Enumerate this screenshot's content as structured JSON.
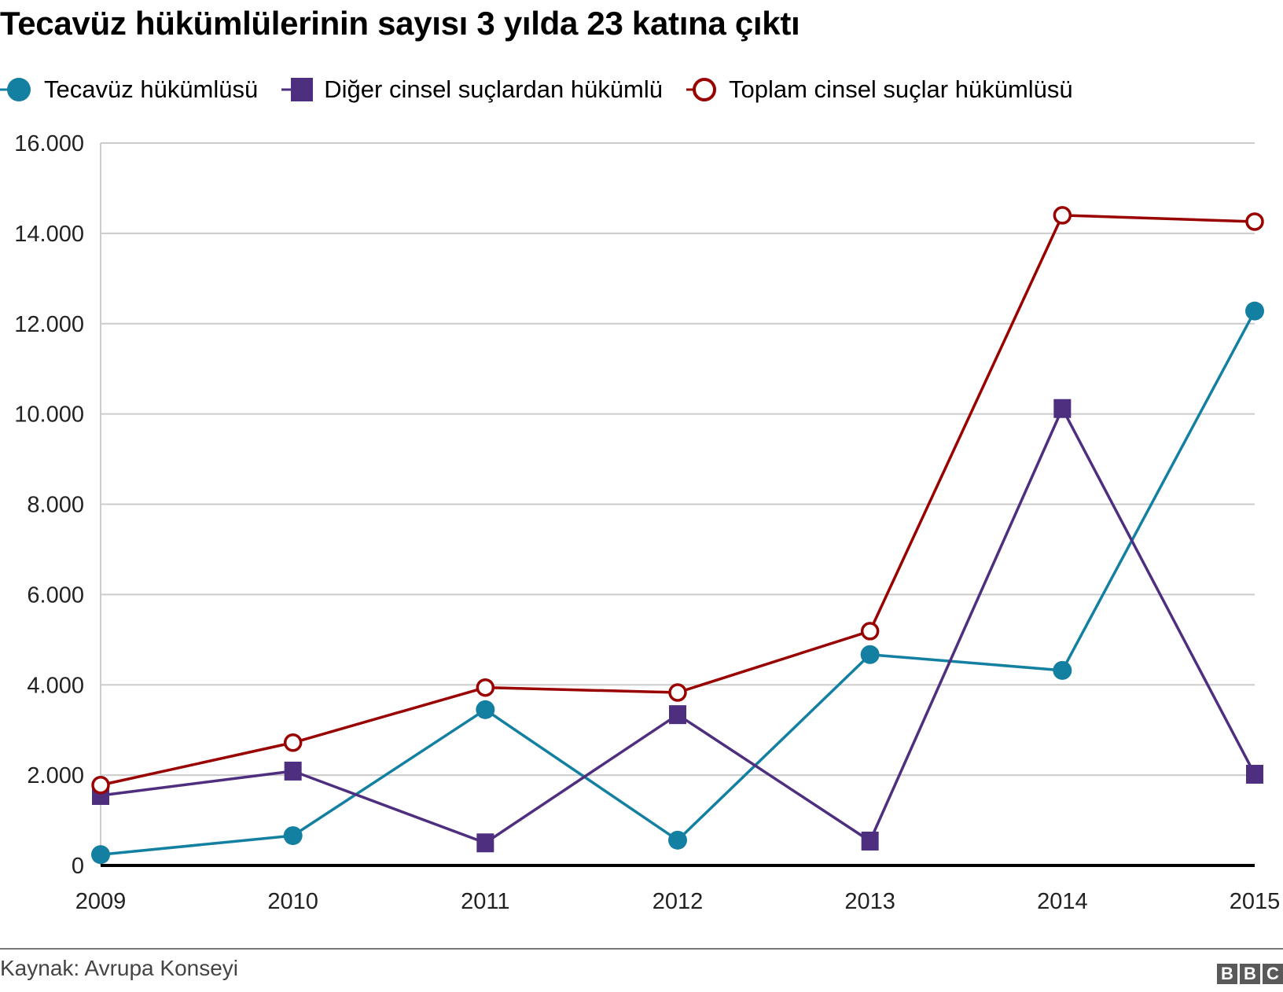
{
  "title": "Tecavüz hükümlülerinin sayısı 3 yılda 23 katına çıktı",
  "legend": [
    {
      "label": "Tecavüz hükümlüsü",
      "color": "#1380A1",
      "marker": "circle"
    },
    {
      "label": "Diğer cinsel suçlardan hükümlü",
      "color": "#4E2E7F",
      "marker": "square"
    },
    {
      "label": "Toplam cinsel suçlar hükümlüsü",
      "color": "#990000",
      "marker": "open-circle"
    }
  ],
  "footer": {
    "source": "Kaynak: Avrupa Konseyi",
    "logo": [
      "B",
      "B",
      "C"
    ]
  },
  "chart_data": {
    "type": "line",
    "title": "Tecavüz hükümlülerinin sayısı 3 yılda 23 katına çıktı",
    "xlabel": "",
    "ylabel": "",
    "x": [
      "2009",
      "2010",
      "2011",
      "2012",
      "2013",
      "2014",
      "2015"
    ],
    "series": [
      {
        "name": "Tecavüz hükümlüsü",
        "color": "#1380A1",
        "marker": "circle",
        "values": [
          240,
          660,
          3450,
          560,
          4670,
          4320,
          12280
        ]
      },
      {
        "name": "Diğer cinsel suçlardan hükümlü",
        "color": "#4E2E7F",
        "marker": "square",
        "values": [
          1550,
          2090,
          500,
          3340,
          540,
          10120,
          2020
        ]
      },
      {
        "name": "Toplam cinsel suçlar hükümlüsü",
        "color": "#990000",
        "marker": "open-circle",
        "values": [
          1780,
          2720,
          3940,
          3830,
          5190,
          14400,
          14260
        ]
      }
    ],
    "yticks": [
      0,
      2000,
      4000,
      6000,
      8000,
      10000,
      12000,
      14000,
      16000
    ],
    "ytick_labels": [
      "0",
      "2.000",
      "4.000",
      "6.000",
      "8.000",
      "10.000",
      "12.000",
      "14.000",
      "16.000"
    ],
    "ylim": [
      0,
      16000
    ],
    "grid": true,
    "legend_position": "top"
  }
}
